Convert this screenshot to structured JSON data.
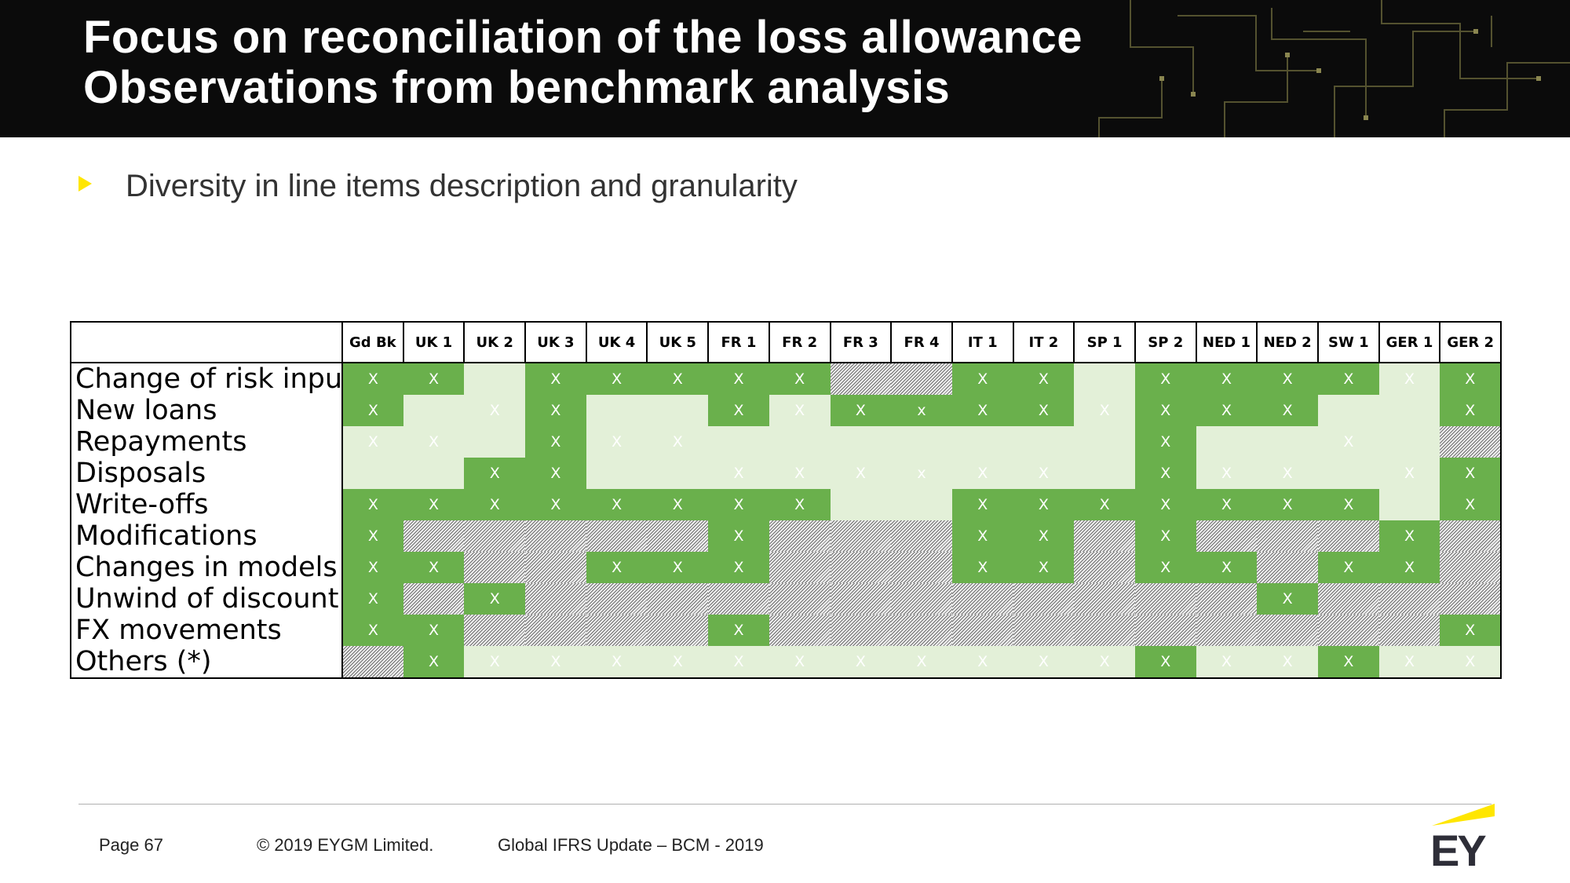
{
  "title": {
    "line1": "Focus on reconciliation of the loss allowance",
    "line2": "Observations from benchmark analysis"
  },
  "bullet": {
    "icon": "triangle-bullet-icon",
    "text": "Diversity in line items description and granularity"
  },
  "colors": {
    "dark_green": "#6ab04c",
    "light_green": "#e3f0d8",
    "hatched": "#6f6f6f",
    "accent": "#ffe600"
  },
  "table": {
    "columns": [
      "Gd Bk",
      "UK 1",
      "UK 2",
      "UK 3",
      "UK 4",
      "UK 5",
      "FR 1",
      "FR 2",
      "FR 3",
      "FR 4",
      "IT 1",
      "IT 2",
      "SP 1",
      "SP 2",
      "NED 1",
      "NED 2",
      "SW 1",
      "GER 1",
      "GER 2"
    ],
    "rows": [
      {
        "label": "Change of risk inputs"
      },
      {
        "label": "New loans"
      },
      {
        "label": "Repayments"
      },
      {
        "label": "Disposals"
      },
      {
        "label": "Write-offs"
      },
      {
        "label": "Modifications"
      },
      {
        "label": "Changes in models"
      },
      {
        "label": "Unwind of discount"
      },
      {
        "label": "FX movements"
      },
      {
        "label": "Others (*)"
      }
    ],
    "mark": "X",
    "mark_small": "x"
  },
  "footer": {
    "page": "Page 67",
    "copyright": "© 2019 EYGM Limited.",
    "event": "Global IFRS Update – BCM - 2019",
    "logo_text": "EY"
  }
}
